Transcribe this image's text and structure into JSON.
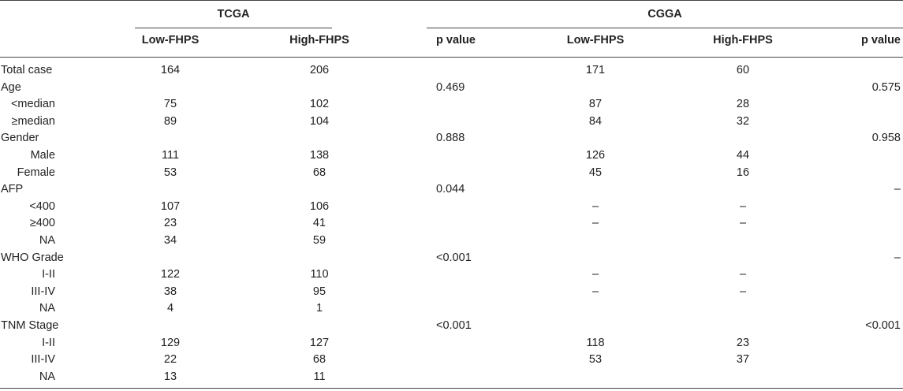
{
  "header": {
    "group_tcga": "TCGA",
    "group_cgga": "CGGA",
    "columns": [
      "Low-FHPS",
      "High-FHPS",
      "p value",
      "Low-FHPS",
      "High-FHPS",
      "p value"
    ]
  },
  "rows": [
    {
      "label": "Total case",
      "indent": false,
      "cells": [
        "164",
        "206",
        "",
        "171",
        "60",
        ""
      ]
    },
    {
      "label": "Age",
      "indent": false,
      "cells": [
        "",
        "",
        "0.469",
        "",
        "",
        "0.575"
      ]
    },
    {
      "label": "<median",
      "indent": true,
      "cells": [
        "75",
        "102",
        "",
        "87",
        "28",
        ""
      ]
    },
    {
      "label": "≥median",
      "indent": true,
      "cells": [
        "89",
        "104",
        "",
        "84",
        "32",
        ""
      ]
    },
    {
      "label": "Gender",
      "indent": false,
      "cells": [
        "",
        "",
        "0.888",
        "",
        "",
        "0.958"
      ]
    },
    {
      "label": "Male",
      "indent": true,
      "cells": [
        "111",
        "138",
        "",
        "126",
        "44",
        ""
      ]
    },
    {
      "label": "Female",
      "indent": true,
      "cells": [
        "53",
        "68",
        "",
        "45",
        "16",
        ""
      ]
    },
    {
      "label": "AFP",
      "indent": false,
      "cells": [
        "",
        "",
        "0.044",
        "",
        "",
        "–"
      ]
    },
    {
      "label": "<400",
      "indent": true,
      "cells": [
        "107",
        "106",
        "",
        "–",
        "–",
        ""
      ]
    },
    {
      "label": "≥400",
      "indent": true,
      "cells": [
        "23",
        "41",
        "",
        "–",
        "–",
        ""
      ]
    },
    {
      "label": "NA",
      "indent": true,
      "cells": [
        "34",
        "59",
        "",
        "",
        "",
        ""
      ]
    },
    {
      "label": "WHO Grade",
      "indent": false,
      "cells": [
        "",
        "",
        "<0.001",
        "",
        "",
        "–"
      ]
    },
    {
      "label": "I-II",
      "indent": true,
      "cells": [
        "122",
        "110",
        "",
        "–",
        "–",
        ""
      ]
    },
    {
      "label": "III-IV",
      "indent": true,
      "cells": [
        "38",
        "95",
        "",
        "–",
        "–",
        ""
      ]
    },
    {
      "label": "NA",
      "indent": true,
      "cells": [
        "4",
        "1",
        "",
        "",
        "",
        ""
      ]
    },
    {
      "label": "TNM Stage",
      "indent": false,
      "cells": [
        "",
        "",
        "<0.001",
        "",
        "",
        "<0.001"
      ]
    },
    {
      "label": "I-II",
      "indent": true,
      "cells": [
        "129",
        "127",
        "",
        "118",
        "23",
        ""
      ]
    },
    {
      "label": "III-IV",
      "indent": true,
      "cells": [
        "22",
        "68",
        "",
        "53",
        "37",
        ""
      ]
    },
    {
      "label": "NA",
      "indent": true,
      "cells": [
        "13",
        "11",
        "",
        "",
        "",
        ""
      ]
    }
  ]
}
